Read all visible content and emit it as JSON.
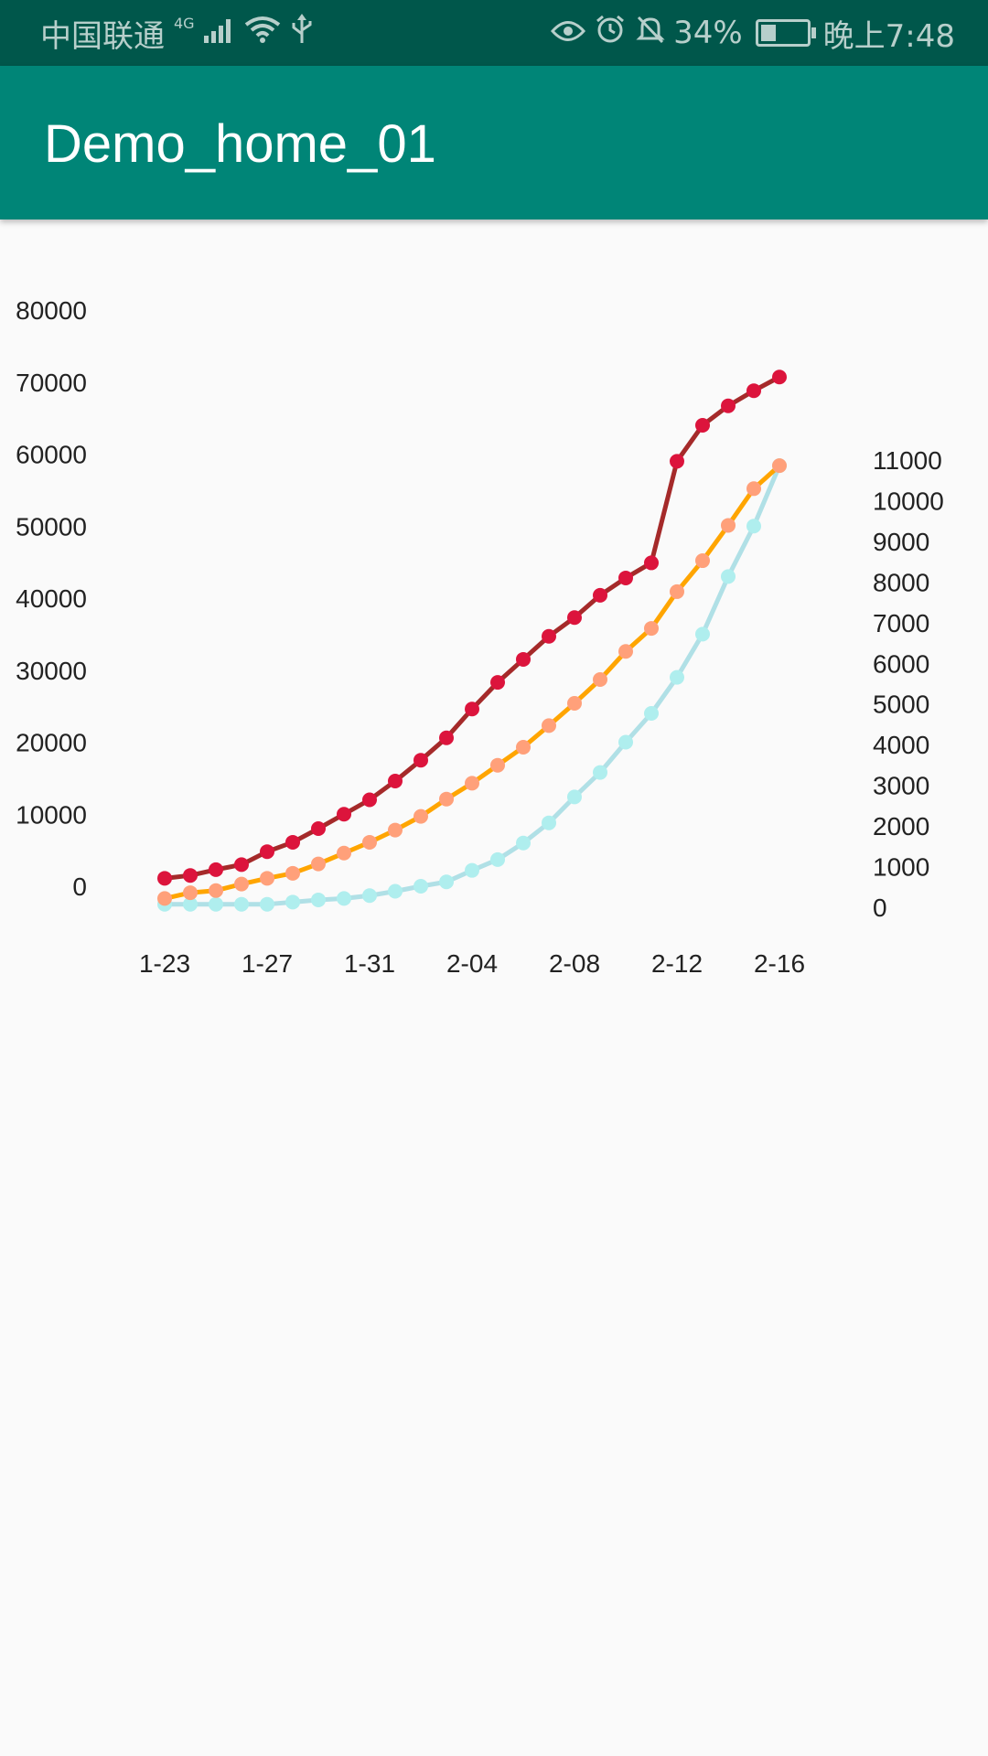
{
  "status_bar": {
    "carrier": "中国联通",
    "network": "4G",
    "signal_icon": "signal-icon",
    "wifi_icon": "wifi-icon",
    "usb_icon": "usb-icon",
    "eye_icon": "eye-icon",
    "alarm_icon": "alarm-icon",
    "mute_icon": "bell-off-icon",
    "battery_percent": "34%",
    "battery_level": 0.34,
    "time": "晚上7:48"
  },
  "app_bar": {
    "title": "Demo_home_01",
    "background": "#008577"
  },
  "chart_data": {
    "type": "line",
    "x": [
      "1-23",
      "1-24",
      "1-25",
      "1-26",
      "1-27",
      "1-28",
      "1-29",
      "1-30",
      "1-31",
      "2-01",
      "2-02",
      "2-03",
      "2-04",
      "2-05",
      "2-06",
      "2-07",
      "2-08",
      "2-09",
      "2-10",
      "2-11",
      "2-12",
      "2-13",
      "2-14",
      "2-15",
      "2-16"
    ],
    "x_tick_labels": [
      "1-23",
      "1-27",
      "1-31",
      "2-04",
      "2-08",
      "2-12",
      "2-16"
    ],
    "left_axis": {
      "ylim": [
        0,
        80000
      ],
      "ticks": [
        "0",
        "10000",
        "20000",
        "30000",
        "40000",
        "50000",
        "60000",
        "70000",
        "80000"
      ]
    },
    "right_axis": {
      "ylim": [
        0,
        11000
      ],
      "ticks": [
        "0",
        "1000",
        "2000",
        "3000",
        "4000",
        "5000",
        "6000",
        "7000",
        "8000",
        "9000",
        "10000",
        "11000"
      ]
    },
    "series": [
      {
        "axis": "left",
        "line_color": "#a52a2a",
        "point_color": "#dc143c",
        "values": [
          1100,
          1500,
          2300,
          3000,
          4800,
          6100,
          8000,
          10000,
          12000,
          14600,
          17500,
          20600,
          24600,
          28300,
          31500,
          34700,
          37300,
          40400,
          42800,
          44900,
          59000,
          64000,
          66700,
          68800,
          70700
        ]
      },
      {
        "axis": "left",
        "line_color": "#ffa500",
        "point_color": "#ffa07a",
        "values": [
          -1700,
          -900,
          -600,
          300,
          1100,
          1800,
          3100,
          4600,
          6100,
          7800,
          9700,
          12100,
          14300,
          16800,
          19300,
          22300,
          25400,
          28700,
          32600,
          35800,
          40900,
          45200,
          50100,
          55200,
          58400
        ]
      },
      {
        "axis": "left",
        "line_color": "#b0e0e6",
        "point_color": "#afeeee",
        "values": [
          -2500,
          -2500,
          -2500,
          -2500,
          -2500,
          -2200,
          -1900,
          -1700,
          -1300,
          -700,
          0,
          600,
          2200,
          3700,
          6000,
          8800,
          12400,
          15800,
          20000,
          24000,
          29000,
          35000,
          43000,
          50000,
          58400
        ]
      }
    ]
  }
}
